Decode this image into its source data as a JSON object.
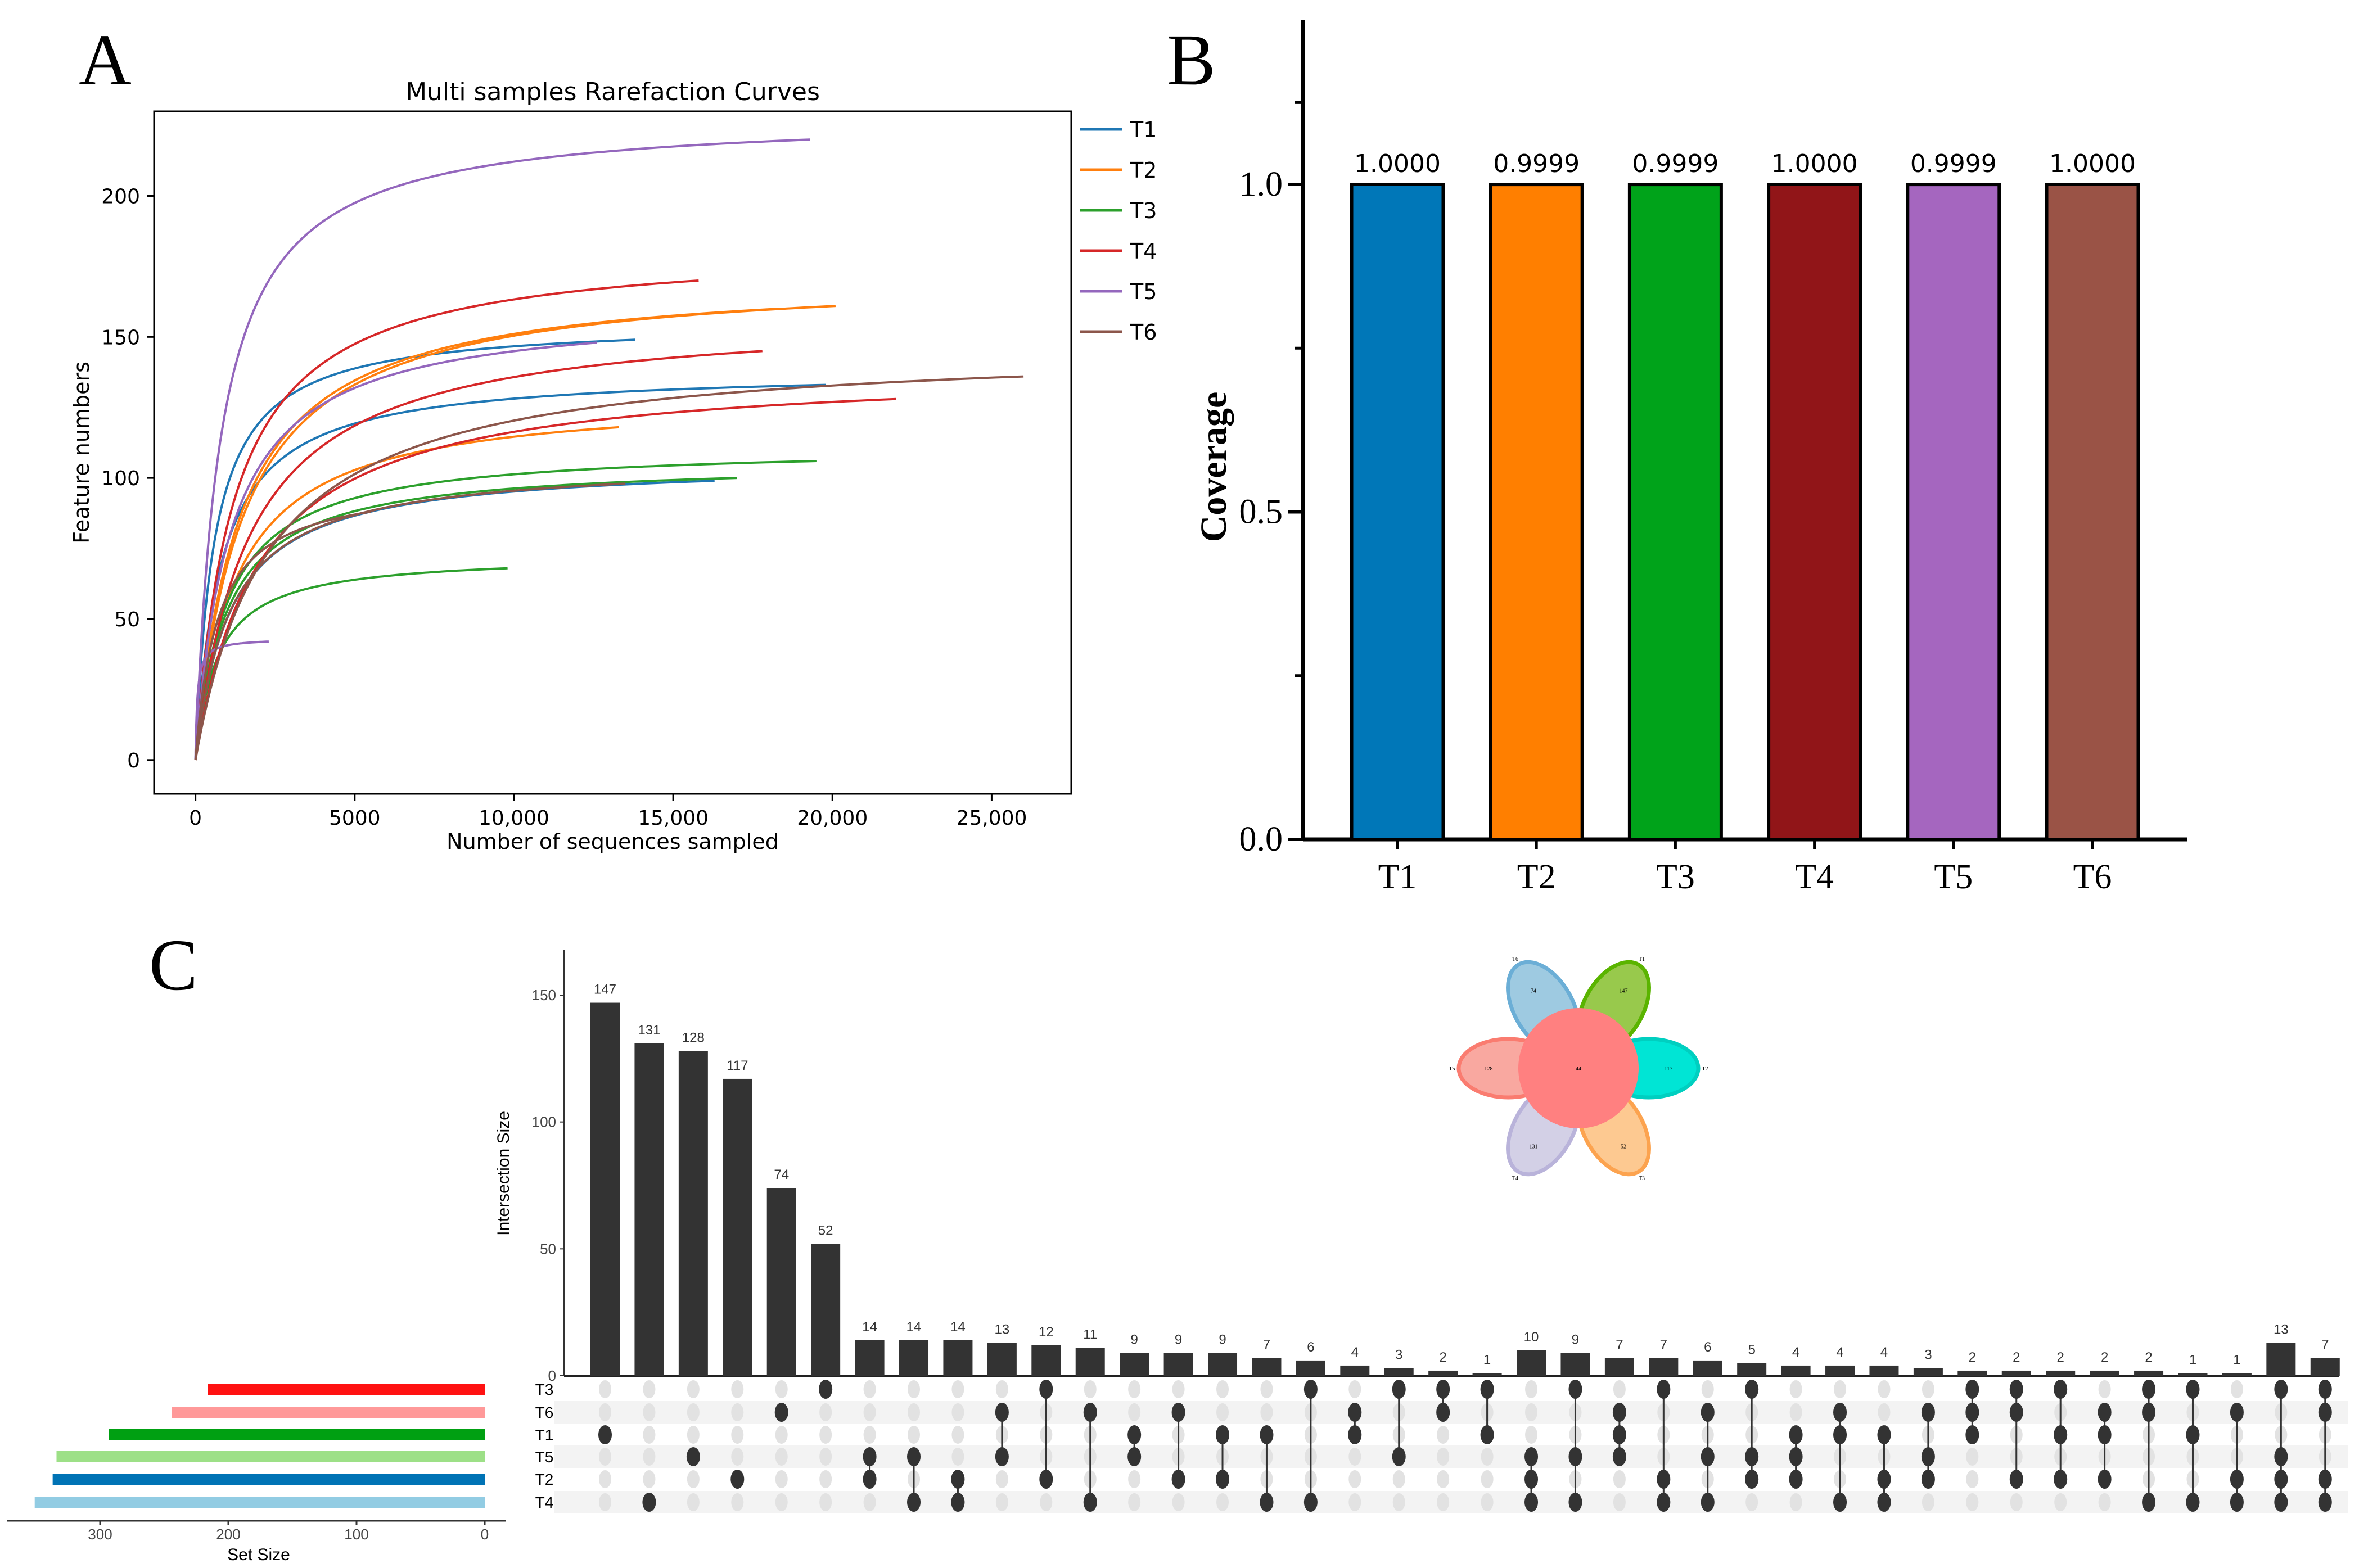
{
  "panels": {
    "a": "A",
    "b": "B",
    "c": "C"
  },
  "chart_data": [
    {
      "type": "line",
      "title": "Multi samples Rarefaction Curves",
      "xlabel": "Number of sequences sampled",
      "ylabel": "Feature numbers",
      "xlim": [
        -1300,
        27500
      ],
      "ylim": [
        -12,
        230
      ],
      "xticks": [
        0,
        5000,
        10000,
        15000,
        20000,
        25000
      ],
      "xtick_labels": [
        "0",
        "5000",
        "10,000",
        "15,000",
        "20,000",
        "25,000"
      ],
      "yticks": [
        0,
        50,
        100,
        150,
        200
      ],
      "ytick_labels": [
        "0",
        "50",
        "100",
        "150",
        "200"
      ],
      "legend": "right-outside",
      "series": [
        {
          "name": "T1",
          "color": "#1f77b4",
          "curves": [
            {
              "max_depth": 13800,
              "final_features": 149,
              "half_saturation": 600
            },
            {
              "max_depth": 19800,
              "final_features": 133,
              "half_saturation": 800
            },
            {
              "max_depth": 16300,
              "final_features": 99,
              "half_saturation": 1100
            }
          ]
        },
        {
          "name": "T2",
          "color": "#ff7f0e",
          "curves": [
            {
              "max_depth": 20100,
              "final_features": 161,
              "half_saturation": 1500
            },
            {
              "max_depth": 18300,
              "final_features": 160,
              "half_saturation": 1400
            },
            {
              "max_depth": 13300,
              "final_features": 118,
              "half_saturation": 1300
            }
          ]
        },
        {
          "name": "T3",
          "color": "#2ca02c",
          "curves": [
            {
              "max_depth": 19500,
              "final_features": 106,
              "half_saturation": 1000
            },
            {
              "max_depth": 17000,
              "final_features": 100,
              "half_saturation": 1000
            },
            {
              "max_depth": 9800,
              "final_features": 68,
              "half_saturation": 700
            }
          ]
        },
        {
          "name": "T4",
          "color": "#d62728",
          "curves": [
            {
              "max_depth": 15800,
              "final_features": 170,
              "half_saturation": 1200
            },
            {
              "max_depth": 17800,
              "final_features": 145,
              "half_saturation": 1700
            },
            {
              "max_depth": 22000,
              "final_features": 128,
              "half_saturation": 2000
            }
          ]
        },
        {
          "name": "T5",
          "color": "#9467bd",
          "curves": [
            {
              "max_depth": 19300,
              "final_features": 220,
              "half_saturation": 800
            },
            {
              "max_depth": 12600,
              "final_features": 148,
              "half_saturation": 1100
            },
            {
              "max_depth": 2300,
              "final_features": 42,
              "half_saturation": 60
            }
          ]
        },
        {
          "name": "T6",
          "color": "#8c564b",
          "curves": [
            {
              "max_depth": 26000,
              "final_features": 136,
              "half_saturation": 2300
            },
            {
              "max_depth": 13500,
              "final_features": 98,
              "half_saturation": 1100
            },
            {
              "max_depth": 5500,
              "final_features": 88,
              "half_saturation": 700
            }
          ]
        }
      ]
    },
    {
      "type": "bar",
      "categories": [
        "T1",
        "T2",
        "T3",
        "T4",
        "T5",
        "T6"
      ],
      "values": [
        1.0,
        0.9999,
        0.9999,
        1.0,
        0.9999,
        1.0
      ],
      "value_labels": [
        "1.0000",
        "0.9999",
        "0.9999",
        "1.0000",
        "0.9999",
        "1.0000"
      ],
      "colors": [
        "#0077b8",
        "#ff7f00",
        "#00a31a",
        "#911518",
        "#a566bf",
        "#9a5346"
      ],
      "title": "",
      "xlabel": "",
      "ylabel": "Coverage",
      "ylim": [
        0,
        1.25
      ],
      "yticks": [
        0.0,
        0.5,
        1.0
      ],
      "ytick_labels": [
        "0.0",
        "0.5",
        "1.0"
      ]
    },
    {
      "type": "upset",
      "ylabel": "Intersection Size",
      "yticks": [
        0,
        50,
        100,
        150
      ],
      "ytick_labels": [
        "0",
        "50",
        "100",
        "150"
      ],
      "set_size_label": "Set Size",
      "set_size_ticks": [
        300,
        200,
        100,
        0
      ],
      "set_size_tick_labels": [
        "300",
        "200",
        "100",
        "0"
      ],
      "sets": [
        {
          "name": "T3",
          "size": 216,
          "color": "#ff1111"
        },
        {
          "name": "T6",
          "size": 244,
          "color": "#ff9999"
        },
        {
          "name": "T1",
          "size": 293,
          "color": "#00a012"
        },
        {
          "name": "T5",
          "size": 334,
          "color": "#9de087"
        },
        {
          "name": "T2",
          "size": 337,
          "color": "#0073b5"
        },
        {
          "name": "T4",
          "size": 351,
          "color": "#92cce3"
        }
      ],
      "intersections": [
        {
          "value": 147,
          "sets": [
            "T1"
          ]
        },
        {
          "value": 131,
          "sets": [
            "T4"
          ]
        },
        {
          "value": 128,
          "sets": [
            "T5"
          ]
        },
        {
          "value": 117,
          "sets": [
            "T2"
          ]
        },
        {
          "value": 74,
          "sets": [
            "T6"
          ]
        },
        {
          "value": 52,
          "sets": [
            "T3"
          ]
        },
        {
          "value": 14,
          "sets": [
            "T5",
            "T2"
          ]
        },
        {
          "value": 14,
          "sets": [
            "T5",
            "T4"
          ]
        },
        {
          "value": 14,
          "sets": [
            "T2",
            "T4"
          ]
        },
        {
          "value": 13,
          "sets": [
            "T6",
            "T5"
          ]
        },
        {
          "value": 12,
          "sets": [
            "T3",
            "T2"
          ]
        },
        {
          "value": 11,
          "sets": [
            "T6",
            "T4"
          ]
        },
        {
          "value": 9,
          "sets": [
            "T1",
            "T5"
          ]
        },
        {
          "value": 9,
          "sets": [
            "T6",
            "T2"
          ]
        },
        {
          "value": 9,
          "sets": [
            "T1",
            "T2"
          ]
        },
        {
          "value": 7,
          "sets": [
            "T1",
            "T4"
          ]
        },
        {
          "value": 6,
          "sets": [
            "T3",
            "T4"
          ]
        },
        {
          "value": 4,
          "sets": [
            "T6",
            "T1"
          ]
        },
        {
          "value": 3,
          "sets": [
            "T3",
            "T5"
          ]
        },
        {
          "value": 2,
          "sets": [
            "T3",
            "T6"
          ]
        },
        {
          "value": 1,
          "sets": [
            "T3",
            "T1"
          ]
        },
        {
          "value": 10,
          "sets": [
            "T5",
            "T2",
            "T4"
          ]
        },
        {
          "value": 9,
          "sets": [
            "T3",
            "T5",
            "T4"
          ]
        },
        {
          "value": 7,
          "sets": [
            "T6",
            "T1",
            "T5"
          ]
        },
        {
          "value": 7,
          "sets": [
            "T3",
            "T2",
            "T4"
          ]
        },
        {
          "value": 6,
          "sets": [
            "T6",
            "T5",
            "T4"
          ]
        },
        {
          "value": 5,
          "sets": [
            "T3",
            "T5",
            "T2"
          ]
        },
        {
          "value": 4,
          "sets": [
            "T1",
            "T5",
            "T2"
          ]
        },
        {
          "value": 4,
          "sets": [
            "T6",
            "T1",
            "T4"
          ]
        },
        {
          "value": 4,
          "sets": [
            "T1",
            "T2",
            "T4"
          ]
        },
        {
          "value": 3,
          "sets": [
            "T6",
            "T5",
            "T2"
          ]
        },
        {
          "value": 2,
          "sets": [
            "T3",
            "T6",
            "T1"
          ]
        },
        {
          "value": 2,
          "sets": [
            "T3",
            "T6",
            "T2"
          ]
        },
        {
          "value": 2,
          "sets": [
            "T3",
            "T1",
            "T2"
          ]
        },
        {
          "value": 2,
          "sets": [
            "T6",
            "T1",
            "T2"
          ]
        },
        {
          "value": 2,
          "sets": [
            "T3",
            "T6",
            "T4"
          ]
        },
        {
          "value": 1,
          "sets": [
            "T3",
            "T1",
            "T4"
          ]
        },
        {
          "value": 1,
          "sets": [
            "T6",
            "T2",
            "T4"
          ]
        },
        {
          "value": 13,
          "sets": [
            "T3",
            "T5",
            "T2",
            "T4"
          ]
        },
        {
          "value": 7,
          "sets": [
            "T3",
            "T6",
            "T2",
            "T4"
          ]
        }
      ]
    },
    {
      "type": "venn-flower",
      "core": "44",
      "petals": [
        {
          "name": "T2",
          "unique": "117",
          "fill": "#00e5d5",
          "stroke": "#00cfc0"
        },
        {
          "name": "T3",
          "unique": "52",
          "fill": "#fdc991",
          "stroke": "#fca34f"
        },
        {
          "name": "T4",
          "unique": "131",
          "fill": "#d3d0e6",
          "stroke": "#b9b3da"
        },
        {
          "name": "T5",
          "unique": "128",
          "fill": "#f9a8a0",
          "stroke": "#fa7c70"
        },
        {
          "name": "T6",
          "unique": "74",
          "fill": "#9ecae1",
          "stroke": "#6baed6"
        },
        {
          "name": "T1",
          "unique": "147",
          "fill": "#98c94c",
          "stroke": "#5ab400"
        }
      ],
      "core_color": "#ff8080"
    }
  ]
}
